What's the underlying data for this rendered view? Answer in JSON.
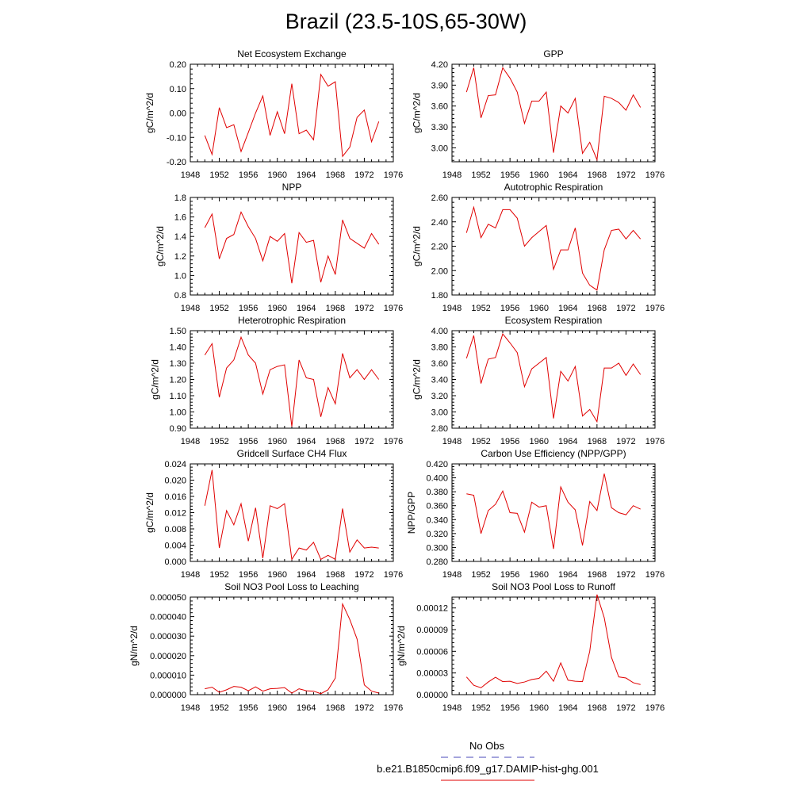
{
  "title": "Brazil (23.5-10S,65-30W)",
  "legend": {
    "items": [
      {
        "label": "No Obs",
        "color": "#4a4ab8",
        "dash": "dashed"
      },
      {
        "label": "b.e21.B1850cmip6.f09_g17.DAMIP-hist-ghg.001",
        "color": "#e00000",
        "dash": "solid"
      }
    ]
  },
  "chart_data": [
    {
      "type": "line",
      "title": "Net Ecosystem Exchange",
      "ylabel": "gC/m^2/d",
      "xlim": [
        1948,
        1976
      ],
      "xticks": [
        "1948",
        "1952",
        "1956",
        "1960",
        "1964",
        "1968",
        "1972",
        "1976"
      ],
      "ylim": [
        -0.2,
        0.2
      ],
      "yticks": [
        "-0.20",
        "-0.10",
        "0.00",
        "0.10",
        "0.20"
      ],
      "x": [
        1950,
        1951,
        1952,
        1953,
        1954,
        1955,
        1956,
        1957,
        1958,
        1959,
        1960,
        1961,
        1962,
        1963,
        1964,
        1965,
        1966,
        1967,
        1968,
        1969,
        1970,
        1971,
        1972,
        1973,
        1974
      ],
      "series": [
        {
          "color": "#e00000",
          "values": [
            -0.092,
            -0.17,
            0.022,
            -0.06,
            -0.048,
            -0.158,
            -0.08,
            0.0,
            0.07,
            -0.092,
            0.005,
            -0.085,
            0.12,
            -0.085,
            -0.07,
            -0.11,
            0.158,
            0.11,
            0.128,
            -0.178,
            -0.14,
            -0.018,
            0.012,
            -0.118,
            -0.035
          ]
        }
      ]
    },
    {
      "type": "line",
      "title": "GPP",
      "ylabel": "gC/m^2/d",
      "xlim": [
        1948,
        1976
      ],
      "xticks": [
        "1948",
        "1952",
        "1956",
        "1960",
        "1964",
        "1968",
        "1972",
        "1976"
      ],
      "ylim": [
        2.8,
        4.2
      ],
      "yticks": [
        "3.00",
        "3.30",
        "3.60",
        "3.90",
        "4.20"
      ],
      "x": [
        1950,
        1951,
        1952,
        1953,
        1954,
        1955,
        1956,
        1957,
        1958,
        1959,
        1960,
        1961,
        1962,
        1963,
        1964,
        1965,
        1966,
        1967,
        1968,
        1969,
        1970,
        1971,
        1972,
        1973,
        1974
      ],
      "series": [
        {
          "color": "#e00000",
          "values": [
            3.8,
            4.15,
            3.43,
            3.75,
            3.76,
            4.15,
            4.0,
            3.8,
            3.35,
            3.67,
            3.67,
            3.8,
            2.93,
            3.6,
            3.5,
            3.71,
            2.92,
            3.08,
            2.83,
            3.74,
            3.71,
            3.65,
            3.54,
            3.76,
            3.58
          ]
        }
      ]
    },
    {
      "type": "line",
      "title": "NPP",
      "ylabel": "gC/m^2/d",
      "xlim": [
        1948,
        1976
      ],
      "xticks": [
        "1948",
        "1952",
        "1956",
        "1960",
        "1964",
        "1968",
        "1972",
        "1976"
      ],
      "ylim": [
        0.8,
        1.8
      ],
      "yticks": [
        "0.8",
        "1.0",
        "1.2",
        "1.4",
        "1.6",
        "1.8"
      ],
      "x": [
        1950,
        1951,
        1952,
        1953,
        1954,
        1955,
        1956,
        1957,
        1958,
        1959,
        1960,
        1961,
        1962,
        1963,
        1964,
        1965,
        1966,
        1967,
        1968,
        1969,
        1970,
        1971,
        1972,
        1973,
        1974
      ],
      "series": [
        {
          "color": "#e00000",
          "values": [
            1.49,
            1.63,
            1.17,
            1.38,
            1.42,
            1.65,
            1.5,
            1.38,
            1.15,
            1.4,
            1.35,
            1.43,
            0.92,
            1.44,
            1.34,
            1.36,
            0.93,
            1.2,
            1.01,
            1.57,
            1.38,
            1.33,
            1.28,
            1.43,
            1.32
          ]
        }
      ]
    },
    {
      "type": "line",
      "title": "Autotrophic Respiration",
      "ylabel": "gC/m^2/d",
      "xlim": [
        1948,
        1976
      ],
      "xticks": [
        "1948",
        "1952",
        "1956",
        "1960",
        "1964",
        "1968",
        "1972",
        "1976"
      ],
      "ylim": [
        1.8,
        2.6
      ],
      "yticks": [
        "1.80",
        "2.00",
        "2.20",
        "2.40",
        "2.60"
      ],
      "x": [
        1950,
        1951,
        1952,
        1953,
        1954,
        1955,
        1956,
        1957,
        1958,
        1959,
        1960,
        1961,
        1962,
        1963,
        1964,
        1965,
        1966,
        1967,
        1968,
        1969,
        1970,
        1971,
        1972,
        1973,
        1974
      ],
      "series": [
        {
          "color": "#e00000",
          "values": [
            2.31,
            2.52,
            2.27,
            2.38,
            2.35,
            2.5,
            2.5,
            2.43,
            2.2,
            2.27,
            2.32,
            2.37,
            2.01,
            2.17,
            2.17,
            2.35,
            1.98,
            1.88,
            1.84,
            2.17,
            2.33,
            2.34,
            2.26,
            2.33,
            2.26
          ]
        }
      ]
    },
    {
      "type": "line",
      "title": "Heterotrophic Respiration",
      "ylabel": "gC/m^2/d",
      "xlim": [
        1948,
        1976
      ],
      "xticks": [
        "1948",
        "1952",
        "1956",
        "1960",
        "1964",
        "1968",
        "1972",
        "1976"
      ],
      "ylim": [
        0.9,
        1.5
      ],
      "yticks": [
        "0.90",
        "1.00",
        "1.10",
        "1.20",
        "1.30",
        "1.40",
        "1.50"
      ],
      "x": [
        1950,
        1951,
        1952,
        1953,
        1954,
        1955,
        1956,
        1957,
        1958,
        1959,
        1960,
        1961,
        1962,
        1963,
        1964,
        1965,
        1966,
        1967,
        1968,
        1969,
        1970,
        1971,
        1972,
        1973,
        1974
      ],
      "series": [
        {
          "color": "#e00000",
          "values": [
            1.35,
            1.42,
            1.09,
            1.27,
            1.32,
            1.46,
            1.35,
            1.3,
            1.11,
            1.26,
            1.28,
            1.29,
            0.91,
            1.32,
            1.21,
            1.2,
            0.97,
            1.15,
            1.05,
            1.36,
            1.21,
            1.26,
            1.2,
            1.26,
            1.2
          ]
        }
      ]
    },
    {
      "type": "line",
      "title": "Ecosystem Respiration",
      "ylabel": "gC/m^2/d",
      "xlim": [
        1948,
        1976
      ],
      "xticks": [
        "1948",
        "1952",
        "1956",
        "1960",
        "1964",
        "1968",
        "1972",
        "1976"
      ],
      "ylim": [
        2.8,
        4.0
      ],
      "yticks": [
        "2.80",
        "3.00",
        "3.20",
        "3.40",
        "3.60",
        "3.80",
        "4.00"
      ],
      "x": [
        1950,
        1951,
        1952,
        1953,
        1954,
        1955,
        1956,
        1957,
        1958,
        1959,
        1960,
        1961,
        1962,
        1963,
        1964,
        1965,
        1966,
        1967,
        1968,
        1969,
        1970,
        1971,
        1972,
        1973,
        1974
      ],
      "series": [
        {
          "color": "#e00000",
          "values": [
            3.66,
            3.94,
            3.35,
            3.65,
            3.67,
            3.96,
            3.85,
            3.73,
            3.31,
            3.53,
            3.6,
            3.67,
            2.92,
            3.5,
            3.38,
            3.56,
            2.95,
            3.03,
            2.88,
            3.54,
            3.54,
            3.6,
            3.45,
            3.59,
            3.46
          ]
        }
      ]
    },
    {
      "type": "line",
      "title": "Gridcell Surface CH4 Flux",
      "ylabel": "gC/m^2/d",
      "xlim": [
        1948,
        1976
      ],
      "xticks": [
        "1948",
        "1952",
        "1956",
        "1960",
        "1964",
        "1968",
        "1972",
        "1976"
      ],
      "ylim": [
        0,
        0.024
      ],
      "yticks": [
        "0.000",
        "0.004",
        "0.008",
        "0.012",
        "0.016",
        "0.020",
        "0.024"
      ],
      "x": [
        1950,
        1951,
        1952,
        1953,
        1954,
        1955,
        1956,
        1957,
        1958,
        1959,
        1960,
        1961,
        1962,
        1963,
        1964,
        1965,
        1966,
        1967,
        1968,
        1969,
        1970,
        1971,
        1972,
        1973,
        1974
      ],
      "series": [
        {
          "color": "#e00000",
          "values": [
            0.0137,
            0.0225,
            0.0033,
            0.0125,
            0.009,
            0.0142,
            0.005,
            0.0132,
            0.0008,
            0.0137,
            0.013,
            0.0142,
            0.0005,
            0.0033,
            0.0028,
            0.0047,
            0.0005,
            0.0015,
            0.0005,
            0.013,
            0.0023,
            0.0053,
            0.0033,
            0.0035,
            0.0033
          ]
        }
      ]
    },
    {
      "type": "line",
      "title": "Carbon Use Efficiency (NPP/GPP)",
      "ylabel": "NPP/GPP",
      "xlim": [
        1948,
        1976
      ],
      "xticks": [
        "1948",
        "1952",
        "1956",
        "1960",
        "1964",
        "1968",
        "1972",
        "1976"
      ],
      "ylim": [
        0.28,
        0.42
      ],
      "yticks": [
        "0.280",
        "0.300",
        "0.320",
        "0.340",
        "0.360",
        "0.380",
        "0.400",
        "0.420"
      ],
      "x": [
        1950,
        1951,
        1952,
        1953,
        1954,
        1955,
        1956,
        1957,
        1958,
        1959,
        1960,
        1961,
        1962,
        1963,
        1964,
        1965,
        1966,
        1967,
        1968,
        1969,
        1970,
        1971,
        1972,
        1973,
        1974
      ],
      "series": [
        {
          "color": "#e00000",
          "values": [
            0.377,
            0.375,
            0.32,
            0.353,
            0.362,
            0.381,
            0.35,
            0.349,
            0.322,
            0.365,
            0.358,
            0.36,
            0.298,
            0.387,
            0.365,
            0.354,
            0.303,
            0.366,
            0.353,
            0.406,
            0.357,
            0.35,
            0.347,
            0.36,
            0.355
          ]
        }
      ]
    },
    {
      "type": "line",
      "title": "Soil NO3 Pool Loss to Leaching",
      "ylabel": "gN/m^2/d",
      "xlim": [
        1948,
        1976
      ],
      "xticks": [
        "1948",
        "1952",
        "1956",
        "1960",
        "1964",
        "1968",
        "1972",
        "1976"
      ],
      "ylim": [
        0,
        5e-05
      ],
      "yticks": [
        "0.000000",
        "0.000010",
        "0.000020",
        "0.000030",
        "0.000040",
        "0.000050"
      ],
      "x": [
        1950,
        1951,
        1952,
        1953,
        1954,
        1955,
        1956,
        1957,
        1958,
        1959,
        1960,
        1961,
        1962,
        1963,
        1964,
        1965,
        1966,
        1967,
        1968,
        1969,
        1970,
        1971,
        1972,
        1973,
        1974
      ],
      "series": [
        {
          "color": "#e00000",
          "values": [
            3e-06,
            3.8e-06,
            1.2e-06,
            2.5e-06,
            4.2e-06,
            3.8e-06,
            2e-06,
            4e-06,
            1.8e-06,
            3e-06,
            3.2e-06,
            3.6e-06,
            8e-07,
            3e-06,
            2e-06,
            1.8e-06,
            5e-07,
            2.5e-06,
            8.5e-06,
            4.65e-05,
            3.85e-05,
            2.85e-05,
            5e-06,
            1.8e-06,
            8e-07
          ]
        }
      ]
    },
    {
      "type": "line",
      "title": "Soil NO3 Pool Loss to Runoff",
      "ylabel": "gN/m^2/d",
      "xlim": [
        1948,
        1976
      ],
      "xticks": [
        "1948",
        "1952",
        "1956",
        "1960",
        "1964",
        "1968",
        "1972",
        "1976"
      ],
      "ylim": [
        0,
        0.000135
      ],
      "yticks": [
        "0.00000",
        "0.00003",
        "0.00006",
        "0.00009",
        "0.00012"
      ],
      "x": [
        1950,
        1951,
        1952,
        1953,
        1954,
        1955,
        1956,
        1957,
        1958,
        1959,
        1960,
        1961,
        1962,
        1963,
        1964,
        1965,
        1966,
        1967,
        1968,
        1969,
        1970,
        1971,
        1972,
        1973,
        1974
      ],
      "series": [
        {
          "color": "#e00000",
          "values": [
            2.45e-05,
            1.3e-05,
            9.5e-06,
            1.75e-05,
            2.4e-05,
            1.8e-05,
            1.85e-05,
            1.55e-05,
            1.75e-05,
            2.1e-05,
            2.25e-05,
            3.25e-05,
            1.85e-05,
            4.4e-05,
            2e-05,
            1.85e-05,
            1.8e-05,
            6e-05,
            0.0001385,
            0.0001065,
            5.15e-05,
            2.45e-05,
            2.3e-05,
            1.65e-05,
            1.4e-05
          ]
        }
      ]
    }
  ]
}
